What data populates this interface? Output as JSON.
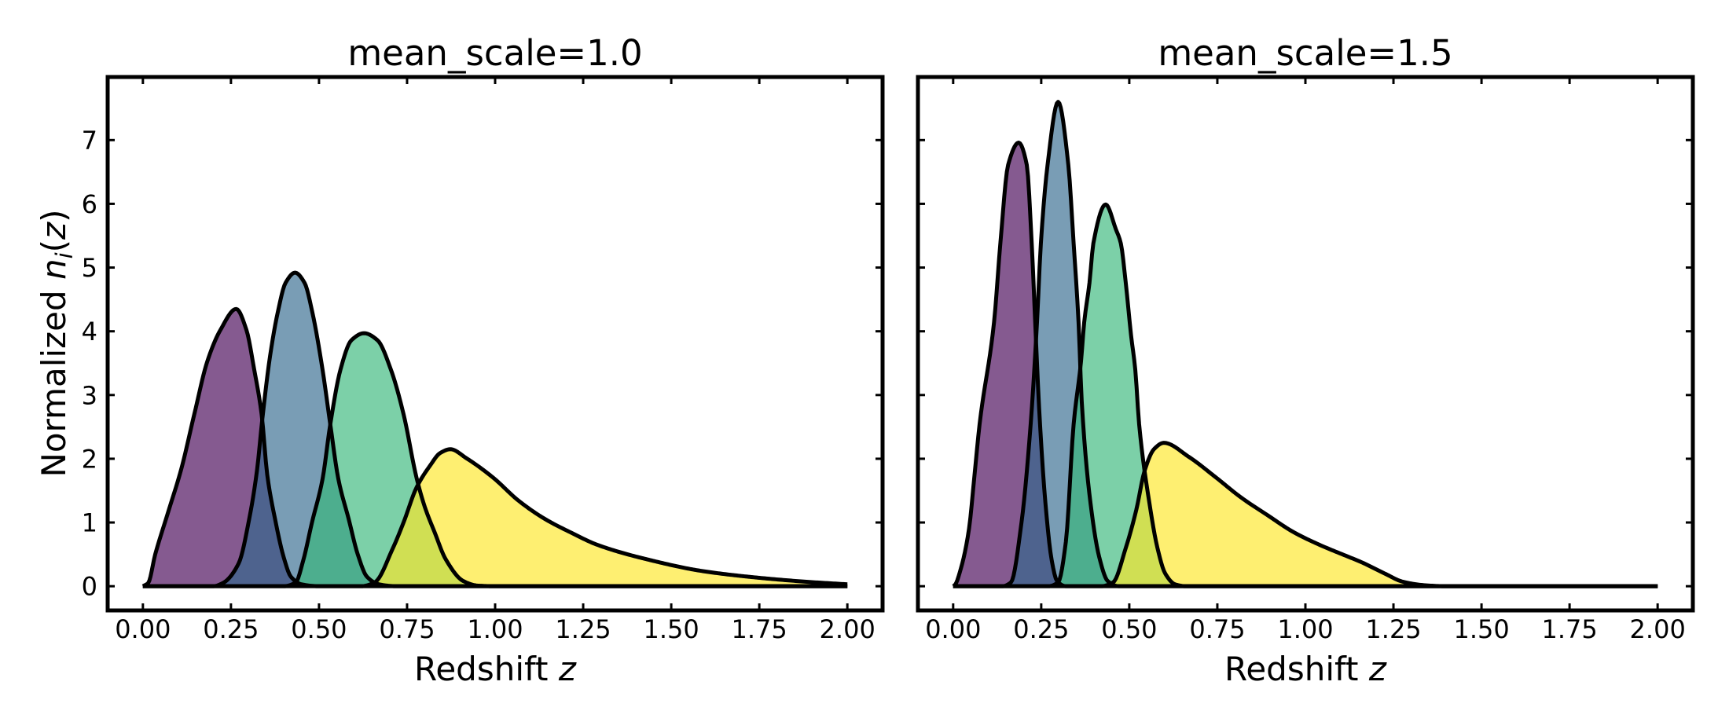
{
  "figure": {
    "background": "#ffffff",
    "spine_color": "#000000",
    "edge_color": "#000000"
  },
  "chart_data": [
    {
      "type": "area",
      "title": "mean_scale=1.0",
      "xlabel": {
        "prefix": "Redshift ",
        "symbol": "z"
      },
      "ylabel": {
        "prefix": "Normalized ",
        "symbol": "n",
        "subscript": "i",
        "open": "(",
        "arg": "z",
        "close": ")"
      },
      "xlim": [
        -0.1,
        2.1
      ],
      "ylim": [
        -0.38,
        7.99
      ],
      "xticks": [
        0,
        0.25,
        0.5,
        0.75,
        1.0,
        1.25,
        1.5,
        1.75,
        2.0
      ],
      "xtick_labels": [
        "0.00",
        "0.25",
        "0.50",
        "0.75",
        "1.00",
        "1.25",
        "1.50",
        "1.75",
        "2.00"
      ],
      "yticks": [
        0,
        1,
        2,
        3,
        4,
        5,
        6,
        7
      ],
      "ytick_labels": [
        "0",
        "1",
        "2",
        "3",
        "4",
        "5",
        "6",
        "7"
      ],
      "grid": false,
      "legend": "none",
      "series": [
        {
          "color": "#440154",
          "alpha": 0.65,
          "points": [
            [
              0,
              0
            ],
            [
              0.015,
              0.05
            ],
            [
              0.035,
              0.5
            ],
            [
              0.071,
              1.15
            ],
            [
              0.109,
              1.84
            ],
            [
              0.146,
              2.7
            ],
            [
              0.183,
              3.53
            ],
            [
              0.22,
              4.02
            ],
            [
              0.265,
              4.35
            ],
            [
              0.294,
              4.02
            ],
            [
              0.316,
              3.4
            ],
            [
              0.337,
              2.7
            ],
            [
              0.353,
              1.75
            ],
            [
              0.375,
              1.06
            ],
            [
              0.4,
              0.45
            ],
            [
              0.42,
              0.15
            ],
            [
              0.45,
              0.03
            ],
            [
              0.5,
              0
            ],
            [
              2.0,
              0
            ]
          ]
        },
        {
          "color": "#31688e",
          "alpha": 0.65,
          "points": [
            [
              0,
              0
            ],
            [
              0.2,
              0
            ],
            [
              0.227,
              0.05
            ],
            [
              0.272,
              0.36
            ],
            [
              0.302,
              1.06
            ],
            [
              0.324,
              1.82
            ],
            [
              0.339,
              2.62
            ],
            [
              0.361,
              3.61
            ],
            [
              0.383,
              4.3
            ],
            [
              0.405,
              4.76
            ],
            [
              0.432,
              4.92
            ],
            [
              0.459,
              4.76
            ],
            [
              0.481,
              4.3
            ],
            [
              0.51,
              3.4
            ],
            [
              0.532,
              2.54
            ],
            [
              0.555,
              1.68
            ],
            [
              0.584,
              1.06
            ],
            [
              0.61,
              0.5
            ],
            [
              0.636,
              0.15
            ],
            [
              0.67,
              0.03
            ],
            [
              0.72,
              0
            ],
            [
              2.0,
              0
            ]
          ]
        },
        {
          "color": "#35b779",
          "alpha": 0.65,
          "points": [
            [
              0,
              0
            ],
            [
              0.4,
              0
            ],
            [
              0.434,
              0.06
            ],
            [
              0.455,
              0.4
            ],
            [
              0.48,
              1.0
            ],
            [
              0.51,
              1.68
            ],
            [
              0.532,
              2.54
            ],
            [
              0.561,
              3.4
            ],
            [
              0.592,
              3.86
            ],
            [
              0.628,
              3.97
            ],
            [
              0.666,
              3.86
            ],
            [
              0.704,
              3.4
            ],
            [
              0.74,
              2.7
            ],
            [
              0.777,
              1.7
            ],
            [
              0.8,
              1.25
            ],
            [
              0.828,
              0.85
            ],
            [
              0.86,
              0.42
            ],
            [
              0.91,
              0.08
            ],
            [
              0.95,
              0.01
            ],
            [
              1.0,
              0
            ],
            [
              2.0,
              0
            ]
          ]
        },
        {
          "color": "#fde725",
          "alpha": 0.65,
          "points": [
            [
              0,
              0
            ],
            [
              0.62,
              0
            ],
            [
              0.658,
              0.06
            ],
            [
              0.71,
              0.6
            ],
            [
              0.74,
              1.0
            ],
            [
              0.777,
              1.55
            ],
            [
              0.815,
              1.89
            ],
            [
              0.844,
              2.09
            ],
            [
              0.873,
              2.15
            ],
            [
              0.918,
              2.01
            ],
            [
              0.993,
              1.71
            ],
            [
              1.067,
              1.34
            ],
            [
              1.14,
              1.06
            ],
            [
              1.216,
              0.84
            ],
            [
              1.29,
              0.65
            ],
            [
              1.44,
              0.41
            ],
            [
              1.586,
              0.24
            ],
            [
              1.735,
              0.14
            ],
            [
              1.884,
              0.07
            ],
            [
              2.0,
              0.03
            ]
          ]
        }
      ]
    },
    {
      "type": "area",
      "title": "mean_scale=1.5",
      "xlabel": {
        "prefix": "Redshift ",
        "symbol": "z"
      },
      "xlim": [
        -0.1,
        2.1
      ],
      "ylim": [
        -0.38,
        7.99
      ],
      "xticks": [
        0,
        0.25,
        0.5,
        0.75,
        1.0,
        1.25,
        1.5,
        1.75,
        2.0
      ],
      "xtick_labels": [
        "0.00",
        "0.25",
        "0.50",
        "0.75",
        "1.00",
        "1.25",
        "1.50",
        "1.75",
        "2.00"
      ],
      "yticks": [
        0,
        1,
        2,
        3,
        4,
        5,
        6,
        7
      ],
      "ytick_labels": [],
      "grid": false,
      "legend": "none",
      "series": [
        {
          "color": "#440154",
          "alpha": 0.65,
          "points": [
            [
              0,
              0
            ],
            [
              0.005,
              0.02
            ],
            [
              0.022,
              0.28
            ],
            [
              0.045,
              0.9
            ],
            [
              0.06,
              1.71
            ],
            [
              0.075,
              2.54
            ],
            [
              0.116,
              4.14
            ],
            [
              0.134,
              5.38
            ],
            [
              0.156,
              6.61
            ],
            [
              0.186,
              6.96
            ],
            [
              0.209,
              6.61
            ],
            [
              0.223,
              5.38
            ],
            [
              0.234,
              4.0
            ],
            [
              0.244,
              2.8
            ],
            [
              0.262,
              1.3
            ],
            [
              0.28,
              0.4
            ],
            [
              0.295,
              0.08
            ],
            [
              0.32,
              0
            ],
            [
              2.0,
              0
            ]
          ]
        },
        {
          "color": "#31688e",
          "alpha": 0.65,
          "points": [
            [
              0,
              0
            ],
            [
              0.14,
              0
            ],
            [
              0.164,
              0.06
            ],
            [
              0.194,
              1.0
            ],
            [
              0.22,
              2.54
            ],
            [
              0.238,
              4.14
            ],
            [
              0.249,
              5.38
            ],
            [
              0.268,
              6.61
            ],
            [
              0.298,
              7.6
            ],
            [
              0.327,
              6.61
            ],
            [
              0.342,
              5.38
            ],
            [
              0.356,
              4.14
            ],
            [
              0.365,
              2.9
            ],
            [
              0.39,
              1.3
            ],
            [
              0.415,
              0.45
            ],
            [
              0.439,
              0.08
            ],
            [
              0.47,
              0
            ],
            [
              2.0,
              0
            ]
          ]
        },
        {
          "color": "#35b779",
          "alpha": 0.65,
          "points": [
            [
              0,
              0
            ],
            [
              0.27,
              0
            ],
            [
              0.298,
              0.06
            ],
            [
              0.32,
              0.7
            ],
            [
              0.342,
              2.54
            ],
            [
              0.363,
              3.53
            ],
            [
              0.372,
              4.14
            ],
            [
              0.387,
              4.76
            ],
            [
              0.398,
              5.38
            ],
            [
              0.433,
              5.99
            ],
            [
              0.462,
              5.6
            ],
            [
              0.476,
              5.38
            ],
            [
              0.49,
              4.76
            ],
            [
              0.505,
              3.94
            ],
            [
              0.517,
              3.4
            ],
            [
              0.528,
              2.54
            ],
            [
              0.557,
              1.31
            ],
            [
              0.58,
              0.6
            ],
            [
              0.602,
              0.2
            ],
            [
              0.63,
              0.03
            ],
            [
              0.66,
              0
            ],
            [
              2.0,
              0
            ]
          ]
        },
        {
          "color": "#fde725",
          "alpha": 0.65,
          "points": [
            [
              0,
              0
            ],
            [
              0.42,
              0
            ],
            [
              0.454,
              0.06
            ],
            [
              0.49,
              0.6
            ],
            [
              0.52,
              1.2
            ],
            [
              0.543,
              1.8
            ],
            [
              0.57,
              2.15
            ],
            [
              0.598,
              2.25
            ],
            [
              0.669,
              2.03
            ],
            [
              0.743,
              1.72
            ],
            [
              0.818,
              1.39
            ],
            [
              0.891,
              1.12
            ],
            [
              0.966,
              0.85
            ],
            [
              1.04,
              0.65
            ],
            [
              1.114,
              0.48
            ],
            [
              1.158,
              0.38
            ],
            [
              1.225,
              0.2
            ],
            [
              1.277,
              0.07
            ],
            [
              1.34,
              0.015
            ],
            [
              1.4,
              0
            ],
            [
              2.0,
              0
            ]
          ]
        }
      ]
    }
  ]
}
